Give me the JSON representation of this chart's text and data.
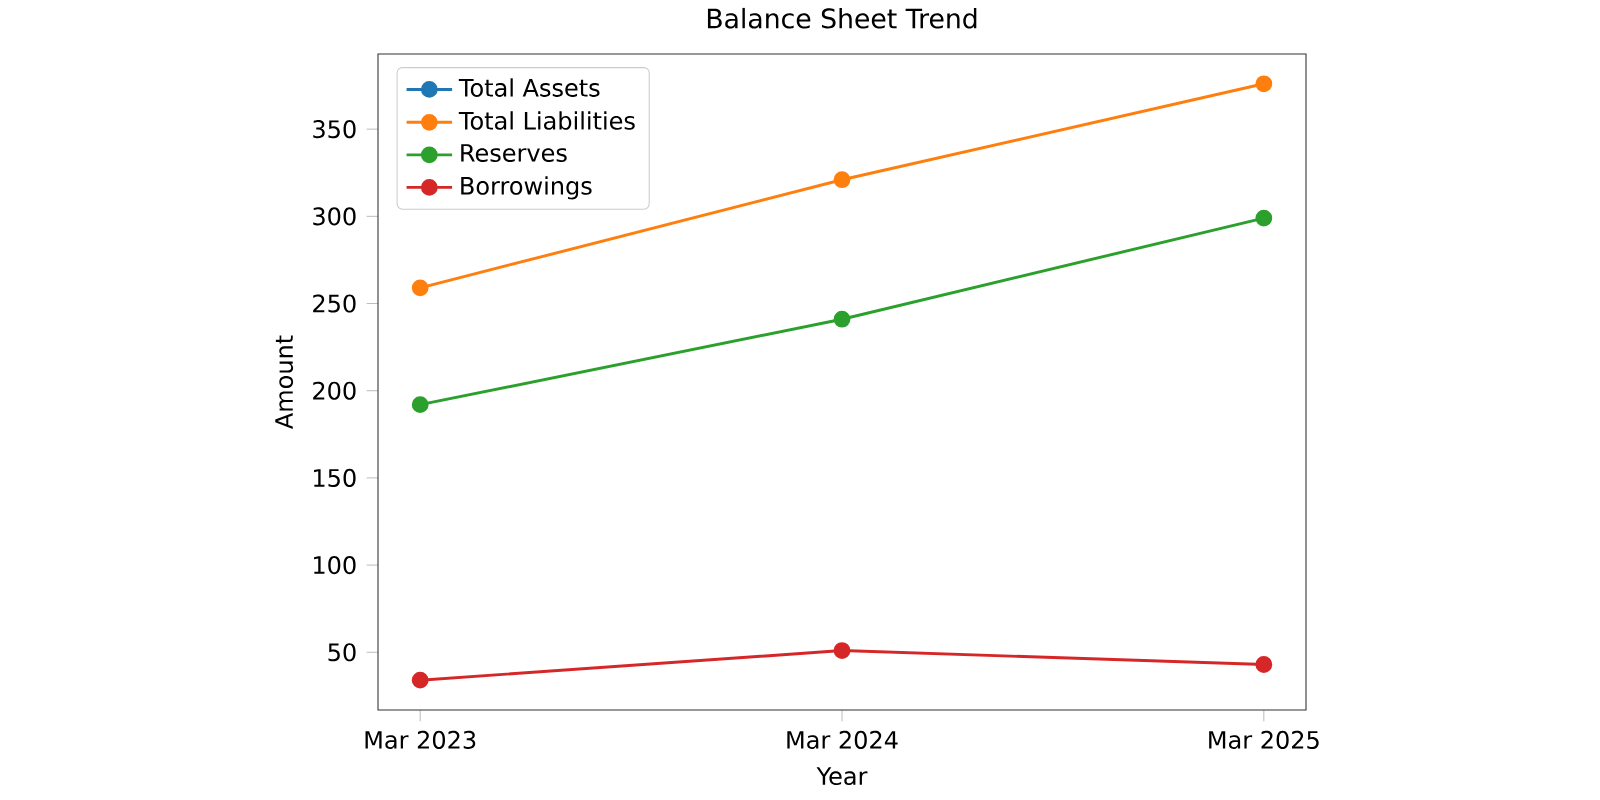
{
  "chart_data": {
    "type": "line",
    "title": "Balance Sheet Trend",
    "xlabel": "Year",
    "ylabel": "Amount",
    "categories": [
      "Mar 2023",
      "Mar 2024",
      "Mar 2025"
    ],
    "series": [
      {
        "name": "Total Assets",
        "color": "#1f77b4",
        "values": [
          null,
          null,
          null
        ]
      },
      {
        "name": "Total Liabilities",
        "color": "#ff7f0e",
        "values": [
          259,
          321,
          376
        ]
      },
      {
        "name": "Reserves",
        "color": "#2ca02c",
        "values": [
          192,
          241,
          299
        ]
      },
      {
        "name": "Borrowings",
        "color": "#d62728",
        "values": [
          34,
          51,
          43
        ]
      }
    ],
    "ylim": [
      16.9,
      393.1
    ],
    "yticks": [
      50,
      100,
      150,
      200,
      250,
      300,
      350
    ],
    "grid": false,
    "legend": "top left",
    "marker": "circle",
    "line_style": "solid"
  }
}
